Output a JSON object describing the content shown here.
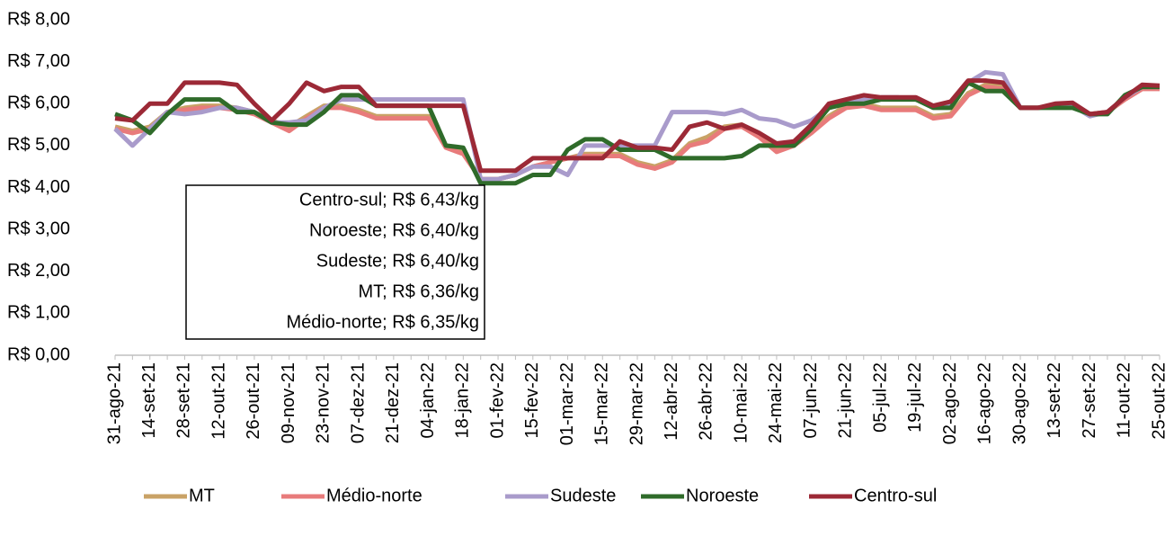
{
  "chart_data": {
    "type": "line",
    "categories": [
      "31-ago-21",
      null,
      "14-set-21",
      null,
      "28-set-21",
      null,
      "12-out-21",
      null,
      "26-out-21",
      null,
      "09-nov-21",
      null,
      "23-nov-21",
      null,
      "07-dez-21",
      null,
      "21-dez-21",
      null,
      "04-jan-22",
      null,
      "18-jan-22",
      null,
      "01-fev-22",
      null,
      "15-fev-22",
      null,
      "01-mar-22",
      null,
      "15-mar-22",
      null,
      "29-mar-22",
      null,
      "12-abr-22",
      null,
      "26-abr-22",
      null,
      "10-mai-22",
      null,
      "24-mai-22",
      null,
      "07-jun-22",
      null,
      "21-jun-22",
      null,
      "05-jul-22",
      null,
      "19-jul-22",
      null,
      "02-ago-22",
      null,
      "16-ago-22",
      null,
      "30-ago-22",
      null,
      "13-set-22",
      null,
      "27-set-22",
      null,
      "11-out-22",
      null,
      "25-out-22"
    ],
    "series": [
      {
        "name": "MT",
        "color": "#c9a266",
        "values": [
          5.45,
          5.35,
          5.45,
          5.8,
          5.9,
          5.95,
          5.95,
          5.9,
          5.8,
          5.6,
          5.45,
          5.7,
          5.95,
          5.95,
          5.85,
          5.7,
          5.7,
          5.7,
          5.7,
          5.0,
          4.85,
          4.2,
          4.2,
          4.3,
          4.5,
          4.6,
          4.7,
          4.8,
          4.8,
          4.8,
          4.6,
          4.5,
          4.65,
          5.05,
          5.2,
          5.45,
          5.5,
          5.25,
          4.9,
          5.05,
          5.35,
          5.7,
          5.95,
          6.0,
          5.9,
          5.9,
          5.9,
          5.7,
          5.75,
          6.25,
          6.45,
          6.4,
          5.9,
          5.9,
          5.95,
          6.0,
          5.75,
          5.8,
          6.1,
          6.36,
          6.36
        ]
      },
      {
        "name": "Médio-norte",
        "color": "#e87b7b",
        "values": [
          5.4,
          5.3,
          5.4,
          5.8,
          5.85,
          5.9,
          5.9,
          5.85,
          5.75,
          5.55,
          5.35,
          5.65,
          5.9,
          5.9,
          5.8,
          5.65,
          5.65,
          5.65,
          5.65,
          4.95,
          4.8,
          4.2,
          4.2,
          4.3,
          4.5,
          4.6,
          4.7,
          4.75,
          4.75,
          4.75,
          4.55,
          4.45,
          4.6,
          5.0,
          5.1,
          5.4,
          5.45,
          5.2,
          4.85,
          5.0,
          5.3,
          5.65,
          5.9,
          5.95,
          5.85,
          5.85,
          5.85,
          5.65,
          5.7,
          6.2,
          6.4,
          6.35,
          5.9,
          5.9,
          5.95,
          6.0,
          5.75,
          5.8,
          6.1,
          6.35,
          6.35
        ]
      },
      {
        "name": "Sudeste",
        "color": "#a99bcb",
        "values": [
          5.4,
          5.0,
          5.4,
          5.8,
          5.75,
          5.8,
          5.9,
          5.9,
          5.8,
          5.55,
          5.55,
          5.6,
          5.9,
          6.1,
          6.1,
          6.1,
          6.1,
          6.1,
          6.1,
          6.1,
          6.1,
          4.2,
          4.2,
          4.3,
          4.5,
          4.5,
          4.3,
          5.0,
          5.0,
          5.0,
          5.0,
          5.0,
          5.8,
          5.8,
          5.8,
          5.75,
          5.85,
          5.65,
          5.6,
          5.45,
          5.6,
          5.9,
          6.0,
          6.1,
          6.15,
          6.15,
          6.1,
          5.95,
          6.0,
          6.5,
          6.75,
          6.7,
          5.9,
          5.9,
          5.95,
          5.95,
          5.7,
          5.8,
          6.15,
          6.4,
          6.4
        ]
      },
      {
        "name": "Noroeste",
        "color": "#2f6b2a",
        "values": [
          5.75,
          5.6,
          5.3,
          5.75,
          6.1,
          6.1,
          6.1,
          5.8,
          5.8,
          5.55,
          5.5,
          5.5,
          5.8,
          6.2,
          6.2,
          5.95,
          5.95,
          5.95,
          5.95,
          5.0,
          4.95,
          4.1,
          4.1,
          4.1,
          4.3,
          4.3,
          4.9,
          5.15,
          5.15,
          4.9,
          4.9,
          4.9,
          4.7,
          4.7,
          4.7,
          4.7,
          4.75,
          5.0,
          5.0,
          5.0,
          5.4,
          5.9,
          6.0,
          6.0,
          6.1,
          6.1,
          6.1,
          5.9,
          5.9,
          6.5,
          6.3,
          6.3,
          5.9,
          5.9,
          5.9,
          5.9,
          5.75,
          5.75,
          6.2,
          6.4,
          6.4
        ]
      },
      {
        "name": "Centro-sul",
        "color": "#9c2936",
        "values": [
          5.65,
          5.6,
          6.0,
          6.0,
          6.5,
          6.5,
          6.5,
          6.45,
          6.0,
          5.6,
          6.0,
          6.5,
          6.3,
          6.4,
          6.4,
          5.95,
          5.95,
          5.95,
          5.95,
          5.95,
          5.95,
          4.4,
          4.4,
          4.4,
          4.7,
          4.7,
          4.7,
          4.7,
          4.7,
          5.1,
          4.95,
          4.95,
          4.9,
          5.45,
          5.55,
          5.4,
          5.5,
          5.3,
          5.05,
          5.1,
          5.5,
          6.0,
          6.1,
          6.2,
          6.15,
          6.15,
          6.15,
          5.95,
          6.05,
          6.55,
          6.55,
          6.5,
          5.9,
          5.9,
          6.0,
          6.02,
          5.75,
          5.8,
          6.15,
          6.45,
          6.43
        ]
      }
    ],
    "ylim": [
      0,
      8
    ],
    "yticks": [
      {
        "value": 0,
        "label": "R$ 0,00"
      },
      {
        "value": 1,
        "label": "R$ 1,00"
      },
      {
        "value": 2,
        "label": "R$ 2,00"
      },
      {
        "value": 3,
        "label": "R$ 3,00"
      },
      {
        "value": 4,
        "label": "R$ 4,00"
      },
      {
        "value": 5,
        "label": "R$ 5,00"
      },
      {
        "value": 6,
        "label": "R$ 6,00"
      },
      {
        "value": 7,
        "label": "R$ 7,00"
      },
      {
        "value": 8,
        "label": "R$ 8,00"
      }
    ],
    "grid": false,
    "legend": "bottom",
    "annotations": [
      "Centro-sul; R$ 6,43/kg",
      "Noroeste; R$ 6,40/kg",
      "Sudeste; R$ 6,40/kg",
      "MT; R$ 6,36/kg",
      "Médio-norte; R$ 6,35/kg"
    ]
  }
}
